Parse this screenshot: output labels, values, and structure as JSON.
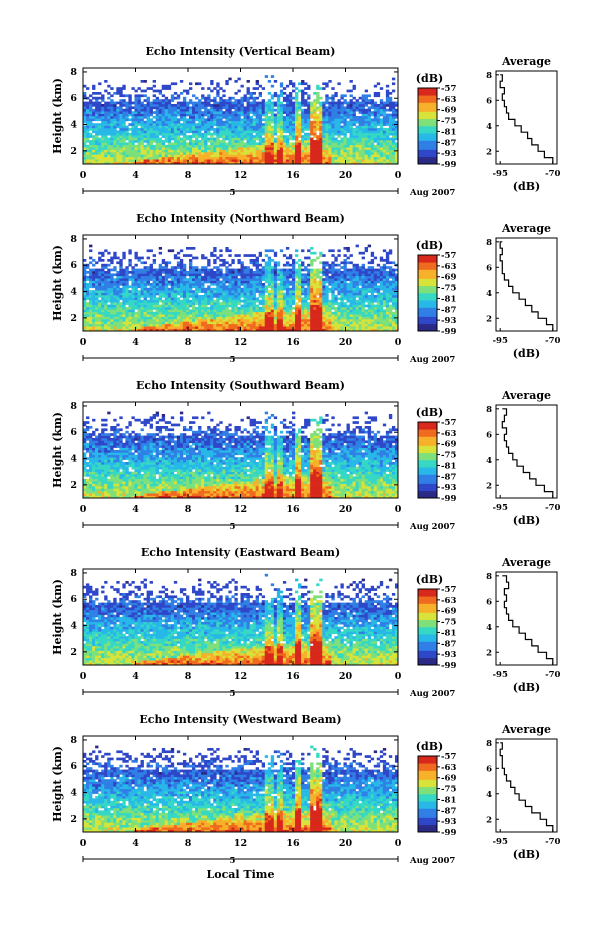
{
  "chart_data": [
    {
      "type": "heatmap",
      "title": "Echo Intensity (Vertical Beam)",
      "xlabel": "",
      "ylabel": "Height (km)",
      "x_ticks": [
        "0",
        "4",
        "8",
        "12",
        "16",
        "20",
        "0"
      ],
      "y_ticks": [
        "2",
        "4",
        "6",
        "8"
      ],
      "xlim": [
        0,
        24
      ],
      "ylim": [
        1,
        8.3
      ],
      "date_markers": [
        "5",
        "Aug 2007"
      ],
      "colorbar": {
        "unit": "(dB)",
        "ticks": [
          "-57",
          "-63",
          "-69",
          "-75",
          "-81",
          "-87",
          "-93",
          "-99"
        ],
        "range": [
          -99,
          -57
        ]
      },
      "average": {
        "title": "Average",
        "xlabel": "(dB)",
        "x_ticks": [
          "-95",
          "-70"
        ],
        "xlim": [
          -97,
          -68
        ],
        "y_ticks": [
          "2",
          "4",
          "6",
          "8"
        ],
        "height_km": [
          1.0,
          1.5,
          2.0,
          2.5,
          3.0,
          3.5,
          4.0,
          4.5,
          5.0,
          5.5,
          6.0,
          6.5,
          7.0,
          7.5,
          8.0
        ],
        "db": [
          -70,
          -74,
          -77,
          -80,
          -82,
          -85,
          -88,
          -91,
          -92,
          -93,
          -94,
          -93,
          -95,
          -94,
          -95
        ]
      }
    },
    {
      "type": "heatmap",
      "title": "Echo Intensity (Northward Beam)",
      "xlabel": "",
      "ylabel": "Height (km)",
      "x_ticks": [
        "0",
        "4",
        "8",
        "12",
        "16",
        "20",
        "0"
      ],
      "y_ticks": [
        "2",
        "4",
        "6",
        "8"
      ],
      "xlim": [
        0,
        24
      ],
      "ylim": [
        1,
        8.3
      ],
      "date_markers": [
        "5",
        "Aug 2007"
      ],
      "colorbar": {
        "unit": "(dB)",
        "ticks": [
          "-57",
          "-63",
          "-69",
          "-75",
          "-81",
          "-87",
          "-93",
          "-99"
        ],
        "range": [
          -99,
          -57
        ]
      },
      "average": {
        "title": "Average",
        "xlabel": "(dB)",
        "x_ticks": [
          "-95",
          "-70"
        ],
        "xlim": [
          -97,
          -68
        ],
        "y_ticks": [
          "2",
          "4",
          "6",
          "8"
        ],
        "height_km": [
          1.0,
          1.5,
          2.0,
          2.5,
          3.0,
          3.5,
          4.0,
          4.5,
          5.0,
          5.5,
          6.0,
          6.5,
          7.0,
          7.5,
          8.0
        ],
        "db": [
          -70,
          -73,
          -77,
          -80,
          -83,
          -86,
          -89,
          -91,
          -93,
          -94,
          -94,
          -95,
          -94,
          -95,
          -94
        ]
      }
    },
    {
      "type": "heatmap",
      "title": "Echo Intensity (Southward Beam)",
      "xlabel": "",
      "ylabel": "Height (km)",
      "x_ticks": [
        "0",
        "4",
        "8",
        "12",
        "16",
        "20",
        "0"
      ],
      "y_ticks": [
        "2",
        "4",
        "6",
        "8"
      ],
      "xlim": [
        0,
        24
      ],
      "ylim": [
        1,
        8.3
      ],
      "date_markers": [
        "5",
        "Aug 2007"
      ],
      "colorbar": {
        "unit": "(dB)",
        "ticks": [
          "-57",
          "-63",
          "-69",
          "-75",
          "-81",
          "-87",
          "-93",
          "-99"
        ],
        "range": [
          -99,
          -57
        ]
      },
      "average": {
        "title": "Average",
        "xlabel": "(dB)",
        "x_ticks": [
          "-95",
          "-70"
        ],
        "xlim": [
          -97,
          -68
        ],
        "y_ticks": [
          "2",
          "4",
          "6",
          "8"
        ],
        "height_km": [
          1.0,
          1.5,
          2.0,
          2.5,
          3.0,
          3.5,
          4.0,
          4.5,
          5.0,
          5.5,
          6.0,
          6.5,
          7.0,
          7.5,
          8.0
        ],
        "db": [
          -70,
          -74,
          -78,
          -81,
          -84,
          -87,
          -89,
          -91,
          -92,
          -93,
          -92,
          -94,
          -93,
          -92,
          -94
        ]
      }
    },
    {
      "type": "heatmap",
      "title": "Echo Intensity (Eastward Beam)",
      "xlabel": "",
      "ylabel": "Height (km)",
      "x_ticks": [
        "0",
        "4",
        "8",
        "12",
        "16",
        "20",
        "0"
      ],
      "y_ticks": [
        "2",
        "4",
        "6",
        "8"
      ],
      "xlim": [
        0,
        24
      ],
      "ylim": [
        1,
        8.3
      ],
      "date_markers": [
        "5",
        "Aug 2007"
      ],
      "colorbar": {
        "unit": "(dB)",
        "ticks": [
          "-57",
          "-63",
          "-69",
          "-75",
          "-81",
          "-87",
          "-93",
          "-99"
        ],
        "range": [
          -99,
          -57
        ]
      },
      "average": {
        "title": "Average",
        "xlabel": "(dB)",
        "x_ticks": [
          "-95",
          "-70"
        ],
        "xlim": [
          -97,
          -68
        ],
        "y_ticks": [
          "2",
          "4",
          "6",
          "8"
        ],
        "height_km": [
          1.0,
          1.5,
          2.0,
          2.5,
          3.0,
          3.5,
          4.0,
          4.5,
          5.0,
          5.5,
          6.0,
          6.5,
          7.0,
          7.5,
          8.0
        ],
        "db": [
          -70,
          -73,
          -77,
          -80,
          -83,
          -86,
          -89,
          -91,
          -92,
          -93,
          -92,
          -93,
          -91,
          -92,
          -94
        ]
      }
    },
    {
      "type": "heatmap",
      "title": "Echo Intensity (Westward Beam)",
      "xlabel": "Local Time",
      "ylabel": "Height (km)",
      "x_ticks": [
        "0",
        "4",
        "8",
        "12",
        "16",
        "20",
        "0"
      ],
      "y_ticks": [
        "2",
        "4",
        "6",
        "8"
      ],
      "xlim": [
        0,
        24
      ],
      "ylim": [
        1,
        8.3
      ],
      "date_markers": [
        "5",
        "Aug 2007"
      ],
      "colorbar": {
        "unit": "(dB)",
        "ticks": [
          "-57",
          "-63",
          "-69",
          "-75",
          "-81",
          "-87",
          "-93",
          "-99"
        ],
        "range": [
          -99,
          -57
        ]
      },
      "average": {
        "title": "Average",
        "xlabel": "(dB)",
        "x_ticks": [
          "-95",
          "-70"
        ],
        "xlim": [
          -97,
          -68
        ],
        "y_ticks": [
          "2",
          "4",
          "6",
          "8"
        ],
        "height_km": [
          1.0,
          1.5,
          2.0,
          2.5,
          3.0,
          3.5,
          4.0,
          4.5,
          5.0,
          5.5,
          6.0,
          6.5,
          7.0,
          7.5,
          8.0
        ],
        "db": [
          -70,
          -73,
          -76,
          -80,
          -83,
          -86,
          -88,
          -90,
          -92,
          -93,
          -94,
          -94,
          -95,
          -94,
          -95
        ]
      }
    }
  ],
  "colors": {
    "colormap": [
      "#2a2a86",
      "#2e46c8",
      "#2f7fe6",
      "#27b8e8",
      "#35d8c4",
      "#7ee07a",
      "#d8e33a",
      "#f7b02a",
      "#f06a1e",
      "#d8281c"
    ]
  }
}
